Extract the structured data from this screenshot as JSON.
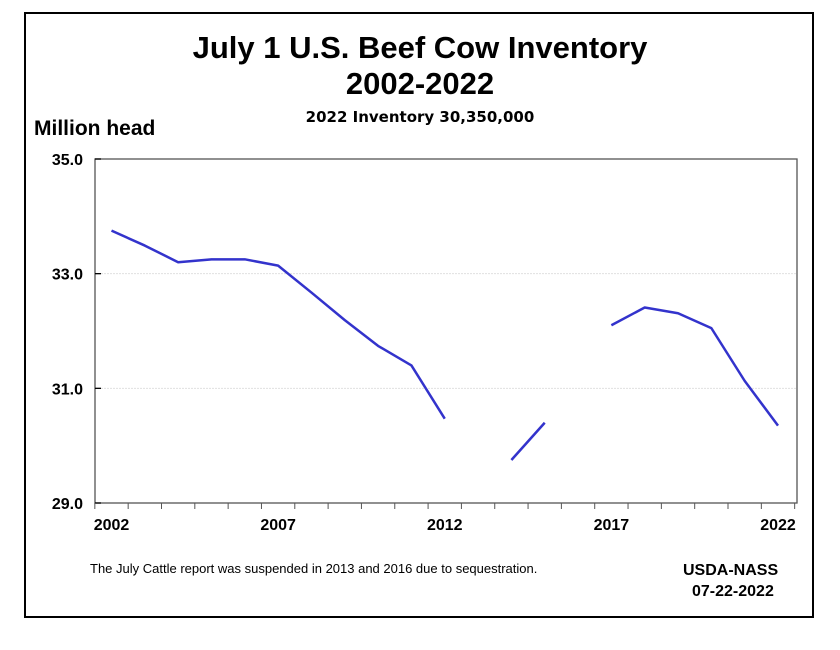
{
  "chart_data": {
    "type": "line",
    "title": "July 1 U.S. Beef Cow Inventory",
    "title_line2": "2002-2022",
    "subtitle": "2022 Inventory 30,350,000",
    "ylabel": "Million head",
    "xlabel": "",
    "ylim": [
      29.0,
      35.0
    ],
    "xlim": [
      2002,
      2022
    ],
    "yticks": [
      "29.0",
      "31.0",
      "33.0",
      "35.0"
    ],
    "xticks": [
      "2002",
      "2007",
      "2012",
      "2017",
      "2022"
    ],
    "grid": "horizontal",
    "line_color": "#3333cc",
    "series": [
      {
        "x": [
          2002,
          2003,
          2004,
          2005,
          2006,
          2007,
          2008,
          2009,
          2010,
          2011,
          2012,
          2013,
          2014,
          2015,
          2016,
          2017,
          2018,
          2019,
          2020,
          2021,
          2022
        ],
        "values": [
          33.75,
          33.49,
          33.2,
          33.25,
          33.25,
          33.14,
          32.67,
          32.19,
          31.74,
          31.4,
          30.47,
          null,
          29.75,
          30.4,
          null,
          32.1,
          32.41,
          32.31,
          32.05,
          31.13,
          30.35
        ]
      }
    ],
    "note": "The July Cattle report was suspended in 2013 and 2016 due to sequestration.",
    "source": "USDA-NASS",
    "date": "07-22-2022"
  }
}
